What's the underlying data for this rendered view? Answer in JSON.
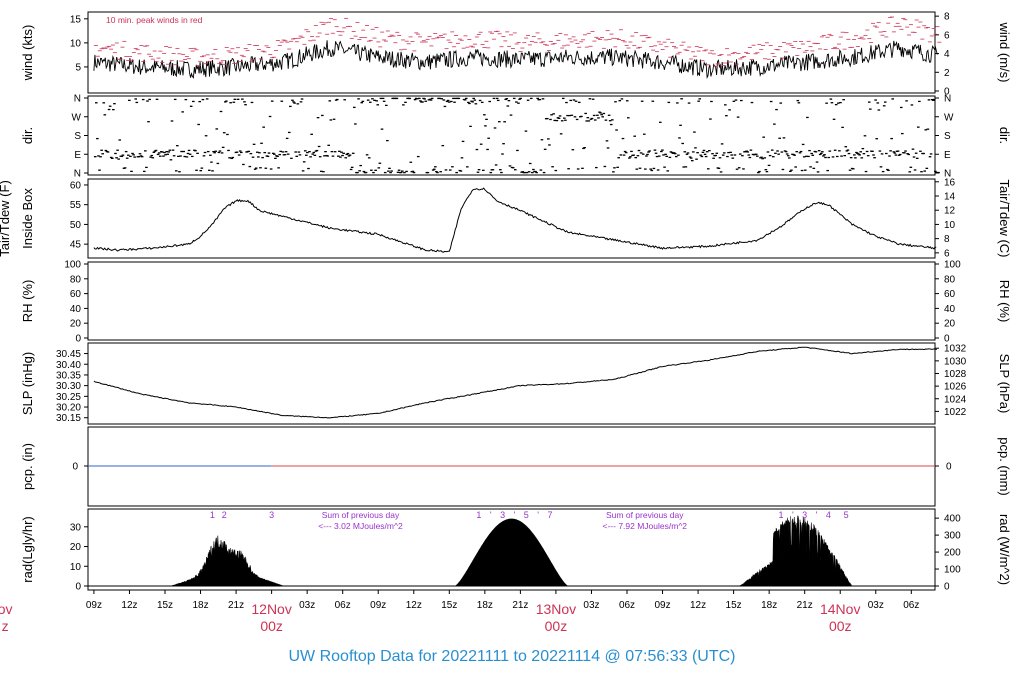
{
  "footer_title": "UW Rooftop Data for 20221111  to  20221114 @ 07:56:33  (UTC)",
  "colors": {
    "data": "#000000",
    "annotation": "#cc3355",
    "solar": "#9933cc",
    "precip_blue": "#3366cc",
    "precip_red": "#dd4444",
    "footer": "#2a8fd0"
  },
  "chart_data": [
    {
      "type": "line",
      "panel": "wind",
      "ylabel": "wind (kts)",
      "ylabel_right": "wind (m/s)",
      "yticks": [
        5,
        10,
        15
      ],
      "yticks_right": [
        0,
        2,
        4,
        6,
        8
      ],
      "annotation": "10 min. peak winds in red",
      "hours": [
        0,
        4,
        8,
        12,
        16,
        20,
        24,
        28,
        32,
        36,
        40,
        44,
        48,
        52,
        56,
        60,
        64,
        68,
        72
      ],
      "values": [
        6,
        5,
        4.5,
        5,
        6,
        9,
        7,
        6,
        7,
        6.5,
        7,
        7,
        6,
        4.5,
        5,
        6,
        7,
        9,
        7
      ],
      "peaks": [
        9,
        8,
        7,
        7.5,
        9,
        14,
        11,
        10,
        11,
        10,
        10.5,
        11,
        9,
        7,
        8,
        9,
        11,
        14,
        11
      ],
      "ylim": [
        0,
        16
      ]
    },
    {
      "type": "scatter",
      "panel": "dir",
      "ylabel": "dir.",
      "ylabel_right": "dir.",
      "yticks": [
        "N",
        "E",
        "S",
        "W",
        "N"
      ],
      "dominant": [
        [
          "E",
          0,
          22
        ],
        [
          "N",
          22,
          38
        ],
        [
          "W",
          38,
          44
        ],
        [
          "E",
          44,
          70
        ]
      ],
      "ylim": [
        0,
        360
      ]
    },
    {
      "type": "line",
      "panel": "temp",
      "ylabel": "Tair/Tdew (F)",
      "ylabel2": "Inside Box",
      "ylabel_right": "Tair/Tdew (C)",
      "yticks": [
        45,
        50,
        55,
        60
      ],
      "yticks_right": [
        6,
        8,
        10,
        12,
        14,
        16
      ],
      "hours": [
        0,
        2,
        5,
        8,
        9,
        10,
        11,
        12,
        13,
        14,
        16,
        20,
        24,
        28,
        30,
        31,
        32,
        33,
        34,
        36,
        40,
        44,
        48,
        52,
        56,
        58,
        60,
        61,
        62,
        64,
        66,
        68,
        71
      ],
      "values": [
        44,
        43.5,
        44,
        45,
        47,
        50,
        54,
        56,
        56,
        53.5,
        52,
        49,
        47.5,
        43.5,
        43,
        54,
        59,
        59,
        56,
        53.5,
        48,
        46,
        44,
        44.5,
        46,
        49.5,
        54,
        55.5,
        55,
        50,
        47,
        45,
        44
      ],
      "ylim": [
        42,
        61
      ]
    },
    {
      "type": "line",
      "panel": "rh",
      "ylabel": "RH (%)",
      "ylabel_right": "RH (%)",
      "yticks": [
        0,
        20,
        40,
        60,
        80,
        100
      ],
      "yticks_right": [
        0,
        20,
        40,
        60,
        80,
        100
      ],
      "ylim": [
        0,
        100
      ]
    },
    {
      "type": "line",
      "panel": "slp",
      "ylabel": "SLP (inHg)",
      "ylabel_right": "SLP (hPa)",
      "yticks": [
        30.15,
        30.2,
        30.25,
        30.3,
        30.35,
        30.4,
        30.45
      ],
      "yticks_right": [
        1022,
        1024,
        1026,
        1028,
        1030,
        1032
      ],
      "hours": [
        0,
        4,
        8,
        12,
        16,
        20,
        24,
        28,
        32,
        36,
        40,
        44,
        48,
        52,
        56,
        60,
        64,
        68,
        71
      ],
      "values": [
        30.32,
        30.26,
        30.22,
        30.2,
        30.16,
        30.15,
        30.17,
        30.22,
        30.26,
        30.3,
        30.31,
        30.33,
        30.39,
        30.42,
        30.46,
        30.48,
        30.45,
        30.47,
        30.47
      ],
      "ylim": [
        30.13,
        30.49
      ]
    },
    {
      "type": "line",
      "panel": "pcp",
      "ylabel": "pcp. (in)",
      "ylabel_right": "pcp. (mm)",
      "yticks": [
        0
      ],
      "yticks_right": [
        0
      ],
      "values": [
        0
      ],
      "blue_until_hour": 15
    },
    {
      "type": "area",
      "panel": "rad",
      "ylabel": "rad(Lgly/hr)",
      "ylabel_right": "rad (W/m^2)",
      "yticks": [
        0,
        10,
        20,
        30
      ],
      "yticks_right": [
        0,
        100,
        200,
        300,
        400
      ],
      "ylim": [
        0,
        37
      ],
      "days": [
        {
          "start": 6.5,
          "end": 16,
          "peak": 26,
          "shape": "cloudy",
          "hour_marks": [
            {
              "label": "1",
              "hour": 10
            },
            {
              "label": "2",
              "hour": 11
            },
            {
              "label": "3",
              "hour": 15
            }
          ]
        },
        {
          "start": 30.5,
          "end": 40,
          "peak": 34,
          "shape": "clear",
          "hour_marks": [
            {
              "label": "1",
              "hour": 32.5
            },
            {
              "label": "'",
              "hour": 33.5
            },
            {
              "label": "3",
              "hour": 34.5
            },
            {
              "label": "'",
              "hour": 35.5
            },
            {
              "label": "5",
              "hour": 36.5
            },
            {
              "label": "'",
              "hour": 37.5
            },
            {
              "label": "7",
              "hour": 38.5
            }
          ]
        },
        {
          "start": 54.5,
          "end": 64,
          "peak": 36,
          "shape": "spiky",
          "hour_marks": [
            {
              "label": "1",
              "hour": 58
            },
            {
              "label": "'",
              "hour": 59
            },
            {
              "label": "3",
              "hour": 60
            },
            {
              "label": "'",
              "hour": 61
            },
            {
              "label": "4",
              "hour": 62
            },
            {
              "label": "5",
              "hour": 63.5
            }
          ]
        }
      ],
      "annotations": [
        {
          "line1": "Sum of previous day",
          "line2": "<--- 3.02 MJoules/m^2",
          "hour": 22.5
        },
        {
          "line1": "Sum of previous day",
          "line2": "<--- 7.92 MJoules/m^2",
          "hour": 46.5
        }
      ]
    }
  ],
  "x_axis": {
    "tick_hours": [
      0,
      3,
      6,
      9,
      12,
      15,
      18,
      21,
      24,
      27,
      30,
      33,
      36,
      39,
      42,
      45,
      48,
      51,
      54,
      57,
      60,
      63,
      66,
      69
    ],
    "tick_labels": [
      "09z",
      "12z",
      "15z",
      "18z",
      "21z",
      "",
      "03z",
      "06z",
      "09z",
      "12z",
      "15z",
      "18z",
      "21z",
      "",
      "03z",
      "06z",
      "09z",
      "12z",
      "15z",
      "18z",
      "21z",
      "",
      "03z",
      "06z"
    ],
    "day_labels": [
      {
        "date": "ov",
        "time": "z",
        "hour": -7.5
      },
      {
        "date": "12Nov",
        "time": "00z",
        "hour": 15
      },
      {
        "date": "13Nov",
        "time": "00z",
        "hour": 39
      },
      {
        "date": "14Nov",
        "time": "00z",
        "hour": 63
      }
    ]
  }
}
